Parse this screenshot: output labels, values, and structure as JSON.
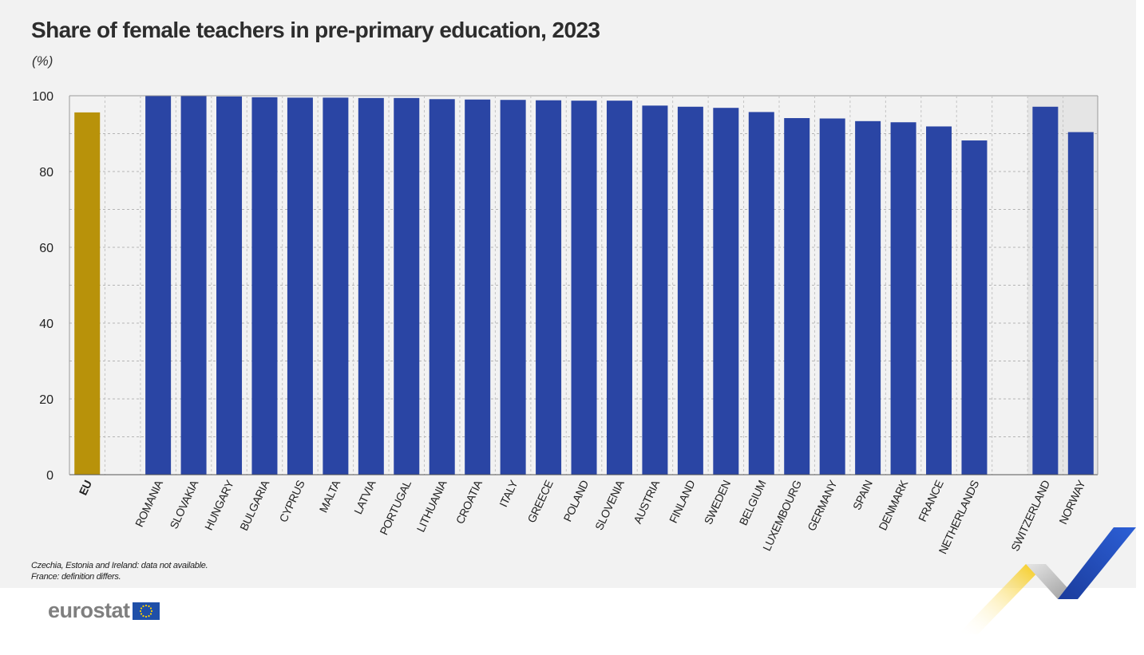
{
  "title": "Share of female teachers in pre-primary education, 2023",
  "unit": "(%)",
  "notes": [
    "Czechia, Estonia and Ireland: data not available.",
    "France: definition differs."
  ],
  "logo": {
    "text": "eurostat",
    "flag_icon": "eu-flag-icon"
  },
  "colors": {
    "eu_bar": "#b8920a",
    "country_bar": "#2a45a4",
    "efta_background": "#e5e5e5",
    "panel_background": "#f2f2f2"
  },
  "chart_data": {
    "type": "bar",
    "title": "Share of female teachers in pre-primary education, 2023",
    "ylabel": "(%)",
    "ylim": [
      0,
      100
    ],
    "yticks": [
      0,
      20,
      40,
      60,
      80,
      100
    ],
    "grid": true,
    "groups": [
      {
        "name": "EU",
        "categories": [
          "EU"
        ],
        "values": [
          95.6
        ]
      },
      {
        "name": "EU Member States",
        "categories": [
          "ROMANIA",
          "SLOVAKIA",
          "HUNGARY",
          "BULGARIA",
          "CYPRUS",
          "MALTA",
          "LATVIA",
          "PORTUGAL",
          "LITHUANIA",
          "CROATIA",
          "ITALY",
          "GREECE",
          "POLAND",
          "SLOVENIA",
          "AUSTRIA",
          "FINLAND",
          "SWEDEN",
          "BELGIUM",
          "LUXEMBOURG",
          "GERMANY",
          "SPAIN",
          "DENMARK",
          "FRANCE",
          "NETHERLANDS"
        ],
        "values": [
          99.9,
          99.9,
          99.8,
          99.6,
          99.5,
          99.5,
          99.4,
          99.4,
          99.1,
          99.0,
          98.9,
          98.8,
          98.7,
          98.7,
          97.4,
          97.1,
          96.8,
          95.7,
          94.1,
          94.0,
          93.3,
          93.0,
          91.9,
          88.2
        ]
      },
      {
        "name": "EFTA",
        "categories": [
          "SWITZERLAND",
          "NORWAY"
        ],
        "values": [
          97.1,
          90.4
        ]
      }
    ]
  }
}
